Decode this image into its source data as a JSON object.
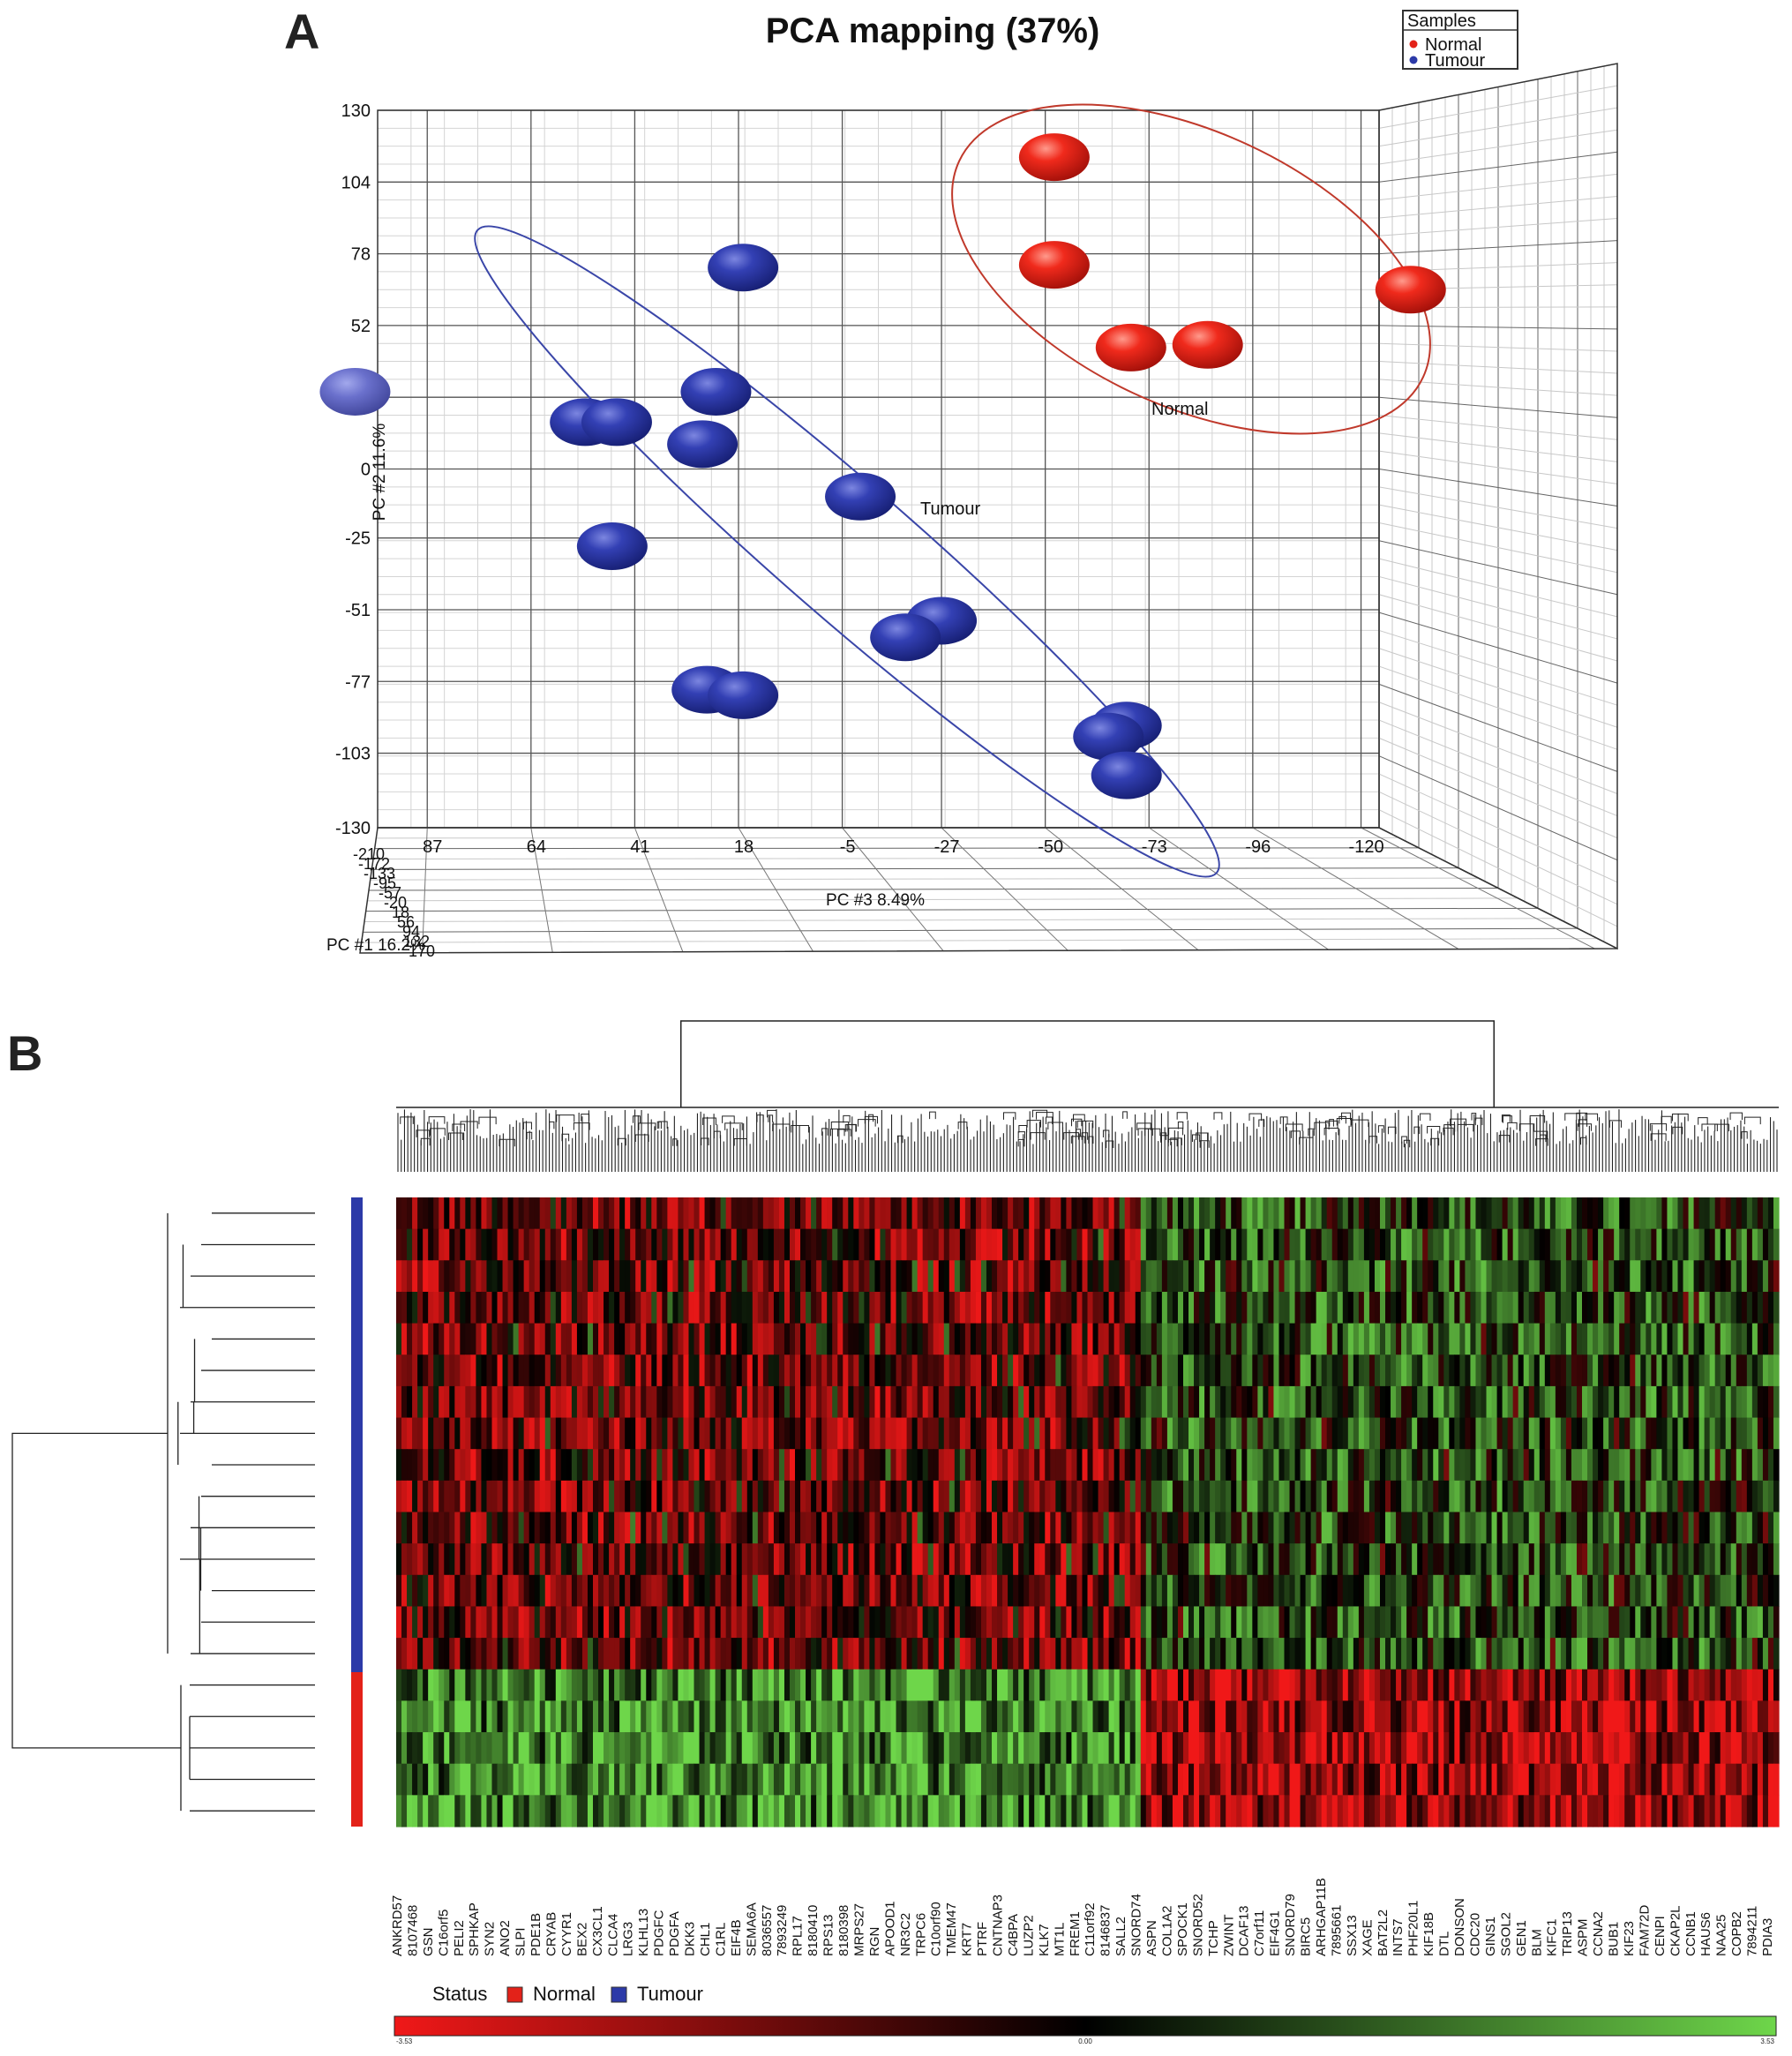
{
  "panel_a": {
    "letter": "A",
    "title": "PCA mapping (37%)",
    "legend": {
      "title": "Samples",
      "entries": [
        {
          "label": "Normal",
          "color": "#e32219"
        },
        {
          "label": "Tumour",
          "color": "#2c3aa8"
        }
      ]
    },
    "axis_pc2_label": "PC #2 11.6%",
    "axis_pc3_label": "PC #3 8.49%",
    "axis_pc1_label": "PC #1 16.2%",
    "ellipse_label_normal": "Normal",
    "ellipse_label_tumour": "Tumour"
  },
  "panel_b": {
    "letter": "B",
    "status_label": "Status",
    "status_entries": [
      {
        "label": "Normal",
        "color": "#e32219"
      },
      {
        "label": "Tumour",
        "color": "#2c3aa8"
      }
    ],
    "colorbar_min": "-3.53",
    "colorbar_mid": "0.00",
    "colorbar_max": "3.53",
    "colorbar_colors": [
      "#f01818",
      "#000000",
      "#6ed64a"
    ]
  },
  "chart_data": [
    {
      "type": "scatter",
      "title": "PCA mapping (37%)",
      "ylabel": "PC #2 11.6%",
      "xlabel": "PC #3 8.49%",
      "zlabel": "PC #1 16.2%",
      "y_ticks": [
        130,
        104,
        78,
        52,
        26,
        0,
        -25,
        -51,
        -77,
        -103,
        -130
      ],
      "x_ticks": [
        87,
        64,
        41,
        18,
        -5,
        -27,
        -50,
        -73,
        -96,
        -120
      ],
      "z_ticks": [
        -210,
        -172,
        -133,
        -95,
        -57,
        -20,
        18,
        56,
        94,
        132,
        170
      ],
      "grid": true,
      "legend_position": "top-right",
      "series": [
        {
          "name": "Normal",
          "color": "#e32219",
          "points": [
            {
              "x": -52,
              "y": 113
            },
            {
              "x": -52,
              "y": 74
            },
            {
              "x": -69,
              "y": 44
            },
            {
              "x": -86,
              "y": 45
            },
            {
              "x": -131,
              "y": 65
            }
          ]
        },
        {
          "name": "Tumour",
          "color": "#2c3aa8",
          "points": [
            {
              "x": 17,
              "y": 73
            },
            {
              "x": 23,
              "y": 28
            },
            {
              "x": 52,
              "y": 17
            },
            {
              "x": 45,
              "y": 17
            },
            {
              "x": 26,
              "y": 9
            },
            {
              "x": -9,
              "y": -10
            },
            {
              "x": 46,
              "y": -28
            },
            {
              "x": -27,
              "y": -55
            },
            {
              "x": -19,
              "y": -61
            },
            {
              "x": 25,
              "y": -80
            },
            {
              "x": 17,
              "y": -82
            },
            {
              "x": -68,
              "y": -93
            },
            {
              "x": -64,
              "y": -97
            },
            {
              "x": -68,
              "y": -111
            },
            {
              "x": 103,
              "y": 28
            }
          ]
        }
      ],
      "ellipse_labels": [
        "Normal",
        "Tumour"
      ]
    },
    {
      "type": "heatmap",
      "row_groups": [
        {
          "label": "Tumour",
          "rows": 15,
          "color": "#2c3aa8"
        },
        {
          "label": "Normal",
          "rows": 5,
          "color": "#e32219"
        }
      ],
      "gene_labels": [
        "ANKRD57",
        "8107468",
        "GSN",
        "C16orf5",
        "PELI2",
        "SPHKAP",
        "SYN2",
        "ANO2",
        "SLPI",
        "PDE1B",
        "CRYAB",
        "CYYR1",
        "BEX2",
        "CX3CL1",
        "CLCA4",
        "LRG3",
        "KLHL13",
        "PDGFC",
        "PDGFA",
        "DKK3",
        "CHL1",
        "C1RL",
        "EIF4B",
        "SEMA6A",
        "8036557",
        "7893249",
        "RPL17",
        "8180410",
        "RPS13",
        "8180398",
        "MRPS27",
        "RGN",
        "APOOD1",
        "NR3C2",
        "TRPC6",
        "C10orf90",
        "TMEM47",
        "KRT7",
        "PTRF",
        "CNTNAP3",
        "C4BPA",
        "LUZP2",
        "KLK7",
        "MT1L",
        "FREM1",
        "C11orf92",
        "8146837",
        "SALL2",
        "SNORD74",
        "ASPN",
        "COL1A2",
        "SPOCK1",
        "SNORD52",
        "TCHP",
        "ZWINT",
        "DCAF13",
        "C7orf11",
        "EIF4G1",
        "SNORD79",
        "BIRC5",
        "ARHGAP11B",
        "7895661",
        "SSX13",
        "XAGE",
        "BAT2L2",
        "INTS7",
        "PHF20L1",
        "KIF18B",
        "DTL",
        "DONSON",
        "CDC20",
        "GINS1",
        "SGOL2",
        "GEN1",
        "BLM",
        "KIFC1",
        "TRIP13",
        "ASPM",
        "CCNA2",
        "BUB1",
        "KIF23",
        "FAM72D",
        "CENPI",
        "CKAP2L",
        "CCNB1",
        "HAUS6",
        "NAA25",
        "COPB2",
        "7894211",
        "PDIA3"
      ],
      "color_scale": {
        "min": -3.53,
        "mid": 0.0,
        "max": 3.53
      },
      "legend_labels": [
        "Normal",
        "Tumour"
      ]
    }
  ]
}
